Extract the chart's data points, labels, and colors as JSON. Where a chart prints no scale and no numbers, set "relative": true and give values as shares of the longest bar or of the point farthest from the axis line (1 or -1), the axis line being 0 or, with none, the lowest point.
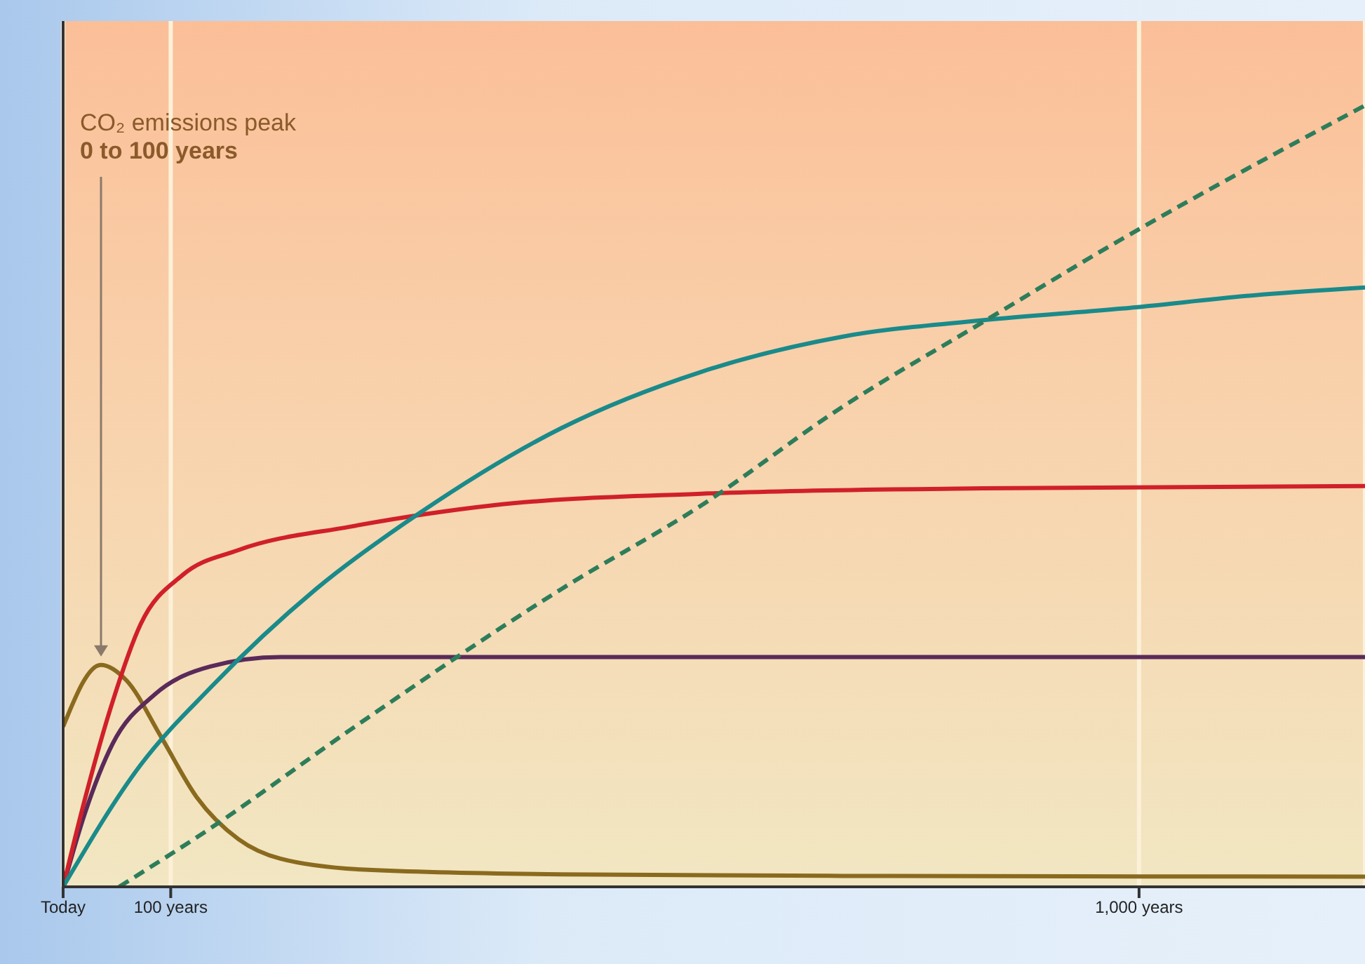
{
  "chart_data": {
    "type": "line",
    "relative": true,
    "xlim": [
      0,
      1210
    ],
    "xticks": [
      {
        "value": 0,
        "label": "Today"
      },
      {
        "value": 100,
        "label": "100 years"
      },
      {
        "value": 1000,
        "label": "1,000 years"
      }
    ],
    "grid": "x",
    "marker": "none",
    "annotations": [
      "CO₂ emissions peak",
      "0 to 100 years"
    ],
    "series": [
      {
        "color": "#8a6a1e",
        "x": [
          0,
          35,
          59,
          91,
          124,
          163,
          202,
          280,
          463,
          724,
          1210
        ],
        "values": [
          0.205,
          0.284,
          0.264,
          0.192,
          0.115,
          0.061,
          0.036,
          0.022,
          0.016,
          0.014,
          0.013
        ]
      },
      {
        "color": "#5a2a5a",
        "x": [
          0,
          20,
          46,
          85,
          137,
          202,
          400,
          800,
          1210
        ],
        "values": [
          0,
          0.093,
          0.183,
          0.246,
          0.282,
          0.294,
          0.294,
          0.294,
          0.294
        ]
      },
      {
        "color": "#d0202a",
        "x": [
          0,
          20,
          46,
          72,
          111,
          163,
          267,
          398,
          593,
          854,
          1210
        ],
        "values": [
          0,
          0.111,
          0.237,
          0.336,
          0.399,
          0.431,
          0.461,
          0.488,
          0.503,
          0.51,
          0.513
        ]
      },
      {
        "color": "#1a8a8a",
        "x": [
          0,
          72,
          137,
          235,
          332,
          463,
          593,
          724,
          854,
          984,
          1115,
          1210
        ],
        "values": [
          0,
          0.156,
          0.255,
          0.381,
          0.479,
          0.587,
          0.659,
          0.704,
          0.725,
          0.74,
          0.758,
          0.767
        ]
      },
      {
        "color": "#2e7d5a",
        "line_style": "dashed",
        "x": [
          52,
          137,
          267,
          463,
          593,
          724,
          854,
          984,
          1210
        ],
        "values": [
          0,
          0.075,
          0.201,
          0.381,
          0.488,
          0.614,
          0.722,
          0.829,
          1
        ]
      }
    ]
  }
}
